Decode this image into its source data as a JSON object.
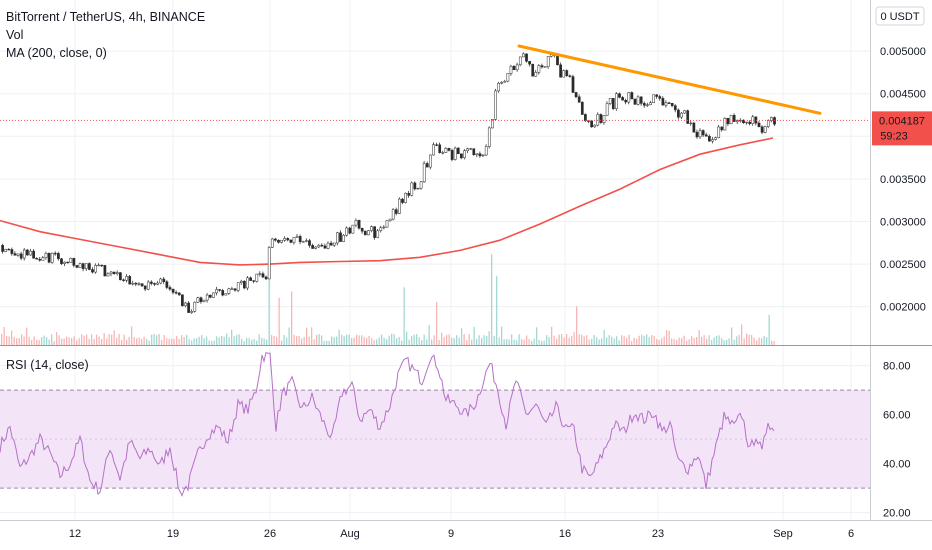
{
  "chart_data": {
    "type": "candlestick",
    "price_pane": {
      "legend": [
        "BitTorrent / TetherUS, 4h, BINANCE",
        "Vol",
        "MA (200, close, 0)"
      ],
      "currency_label": "USDT",
      "y_ticks": [
        "0.005000",
        "0.004500",
        "0.003500",
        "0.003000",
        "0.002500",
        "0.002000"
      ],
      "y_tick_values": [
        0.005,
        0.0045,
        0.0035,
        0.003,
        0.0025,
        0.002
      ],
      "ylim": [
        0.00155,
        0.0056
      ],
      "last_price": "0.004187",
      "last_price_value": 0.004187,
      "countdown": "59:23",
      "close_path": [
        [
          0,
          0.00272
        ],
        [
          10,
          0.00268
        ],
        [
          20,
          0.00262
        ],
        [
          30,
          0.00259
        ],
        [
          40,
          0.00256
        ],
        [
          55,
          0.00258
        ],
        [
          70,
          0.00254
        ],
        [
          85,
          0.00249
        ],
        [
          100,
          0.00243
        ],
        [
          115,
          0.00238
        ],
        [
          130,
          0.00232
        ],
        [
          145,
          0.00226
        ],
        [
          160,
          0.00229
        ],
        [
          172,
          0.00221
        ],
        [
          180,
          0.00209
        ],
        [
          186,
          0.00196
        ],
        [
          195,
          0.00204
        ],
        [
          210,
          0.00213
        ],
        [
          225,
          0.00219
        ],
        [
          240,
          0.00226
        ],
        [
          255,
          0.00232
        ],
        [
          266,
          0.00238
        ],
        [
          270,
          0.00287
        ],
        [
          282,
          0.00275
        ],
        [
          292,
          0.00281
        ],
        [
          305,
          0.00274
        ],
        [
          318,
          0.00271
        ],
        [
          332,
          0.00279
        ],
        [
          345,
          0.00285
        ],
        [
          352,
          0.00298
        ],
        [
          365,
          0.00288
        ],
        [
          378,
          0.00287
        ],
        [
          388,
          0.00301
        ],
        [
          398,
          0.00319
        ],
        [
          408,
          0.00336
        ],
        [
          418,
          0.00346
        ],
        [
          426,
          0.00371
        ],
        [
          434,
          0.00392
        ],
        [
          444,
          0.00382
        ],
        [
          454,
          0.00379
        ],
        [
          464,
          0.00384
        ],
        [
          474,
          0.00382
        ],
        [
          484,
          0.00385
        ],
        [
          490,
          0.00412
        ],
        [
          496,
          0.00458
        ],
        [
          503,
          0.00471
        ],
        [
          512,
          0.00486
        ],
        [
          522,
          0.00489
        ],
        [
          532,
          0.00479
        ],
        [
          542,
          0.00484
        ],
        [
          552,
          0.00488
        ],
        [
          562,
          0.00475
        ],
        [
          572,
          0.00455
        ],
        [
          580,
          0.00432
        ],
        [
          590,
          0.00418
        ],
        [
          600,
          0.00423
        ],
        [
          610,
          0.00438
        ],
        [
          620,
          0.00446
        ],
        [
          630,
          0.00443
        ],
        [
          640,
          0.00436
        ],
        [
          650,
          0.00446
        ],
        [
          660,
          0.00441
        ],
        [
          670,
          0.00435
        ],
        [
          680,
          0.00425
        ],
        [
          690,
          0.00416
        ],
        [
          700,
          0.00401
        ],
        [
          708,
          0.00391
        ],
        [
          718,
          0.00409
        ],
        [
          728,
          0.00418
        ],
        [
          738,
          0.00426
        ],
        [
          748,
          0.00422
        ],
        [
          758,
          0.0041
        ],
        [
          764,
          0.00403
        ],
        [
          770,
          0.00426
        ],
        [
          775,
          0.00419
        ]
      ],
      "ma200_path": [
        [
          0,
          0.00301
        ],
        [
          40,
          0.00288
        ],
        [
          80,
          0.00279
        ],
        [
          120,
          0.0027
        ],
        [
          160,
          0.00261
        ],
        [
          200,
          0.00252
        ],
        [
          240,
          0.00249
        ],
        [
          270,
          0.0025
        ],
        [
          300,
          0.00252
        ],
        [
          340,
          0.00253
        ],
        [
          380,
          0.00254
        ],
        [
          420,
          0.00258
        ],
        [
          460,
          0.00266
        ],
        [
          500,
          0.00278
        ],
        [
          540,
          0.00297
        ],
        [
          580,
          0.00318
        ],
        [
          620,
          0.00338
        ],
        [
          660,
          0.00361
        ],
        [
          700,
          0.00379
        ],
        [
          740,
          0.0039
        ],
        [
          773,
          0.00398
        ]
      ],
      "trendline": [
        [
          519,
          0.00506
        ],
        [
          820,
          0.00427
        ]
      ],
      "volume_spikes": [
        [
          268,
          0.9
        ],
        [
          278,
          0.55
        ],
        [
          490,
          1.0
        ],
        [
          497,
          0.8
        ],
        [
          404,
          0.6
        ],
        [
          768,
          0.35
        ],
        [
          290,
          0.5
        ],
        [
          575,
          0.45
        ],
        [
          437,
          0.5
        ]
      ]
    },
    "rsi_pane": {
      "legend": "RSI (14, close)",
      "y_ticks": [
        "80.00",
        "60.00",
        "40.00",
        "20.00"
      ],
      "y_tick_values": [
        80,
        60,
        40,
        20
      ],
      "ylim": [
        17,
        88
      ],
      "band": [
        30,
        70
      ],
      "mid": 50,
      "path": [
        [
          0,
          47
        ],
        [
          10,
          55
        ],
        [
          20,
          38
        ],
        [
          30,
          43
        ],
        [
          40,
          50
        ],
        [
          50,
          44
        ],
        [
          60,
          35
        ],
        [
          70,
          40
        ],
        [
          80,
          50
        ],
        [
          90,
          33
        ],
        [
          100,
          29
        ],
        [
          110,
          47
        ],
        [
          120,
          34
        ],
        [
          130,
          49
        ],
        [
          140,
          42
        ],
        [
          150,
          46
        ],
        [
          160,
          39
        ],
        [
          170,
          47
        ],
        [
          180,
          28
        ],
        [
          188,
          31
        ],
        [
          198,
          44
        ],
        [
          208,
          52
        ],
        [
          218,
          55
        ],
        [
          228,
          49
        ],
        [
          238,
          64
        ],
        [
          248,
          62
        ],
        [
          256,
          70
        ],
        [
          262,
          84
        ],
        [
          270,
          84
        ],
        [
          276,
          55
        ],
        [
          282,
          68
        ],
        [
          292,
          73
        ],
        [
          302,
          62
        ],
        [
          312,
          67
        ],
        [
          322,
          58
        ],
        [
          332,
          50
        ],
        [
          342,
          69
        ],
        [
          352,
          72
        ],
        [
          360,
          58
        ],
        [
          370,
          62
        ],
        [
          380,
          55
        ],
        [
          390,
          64
        ],
        [
          398,
          76
        ],
        [
          406,
          82
        ],
        [
          414,
          78
        ],
        [
          422,
          74
        ],
        [
          430,
          84
        ],
        [
          438,
          80
        ],
        [
          446,
          66
        ],
        [
          456,
          64
        ],
        [
          466,
          60
        ],
        [
          476,
          65
        ],
        [
          484,
          75
        ],
        [
          490,
          81
        ],
        [
          498,
          70
        ],
        [
          506,
          56
        ],
        [
          516,
          74
        ],
        [
          526,
          60
        ],
        [
          536,
          64
        ],
        [
          546,
          55
        ],
        [
          556,
          63
        ],
        [
          566,
          54
        ],
        [
          574,
          54
        ],
        [
          582,
          38
        ],
        [
          590,
          34
        ],
        [
          598,
          40
        ],
        [
          606,
          47
        ],
        [
          614,
          56
        ],
        [
          624,
          53
        ],
        [
          634,
          61
        ],
        [
          644,
          58
        ],
        [
          654,
          61
        ],
        [
          662,
          53
        ],
        [
          670,
          56
        ],
        [
          678,
          41
        ],
        [
          688,
          38
        ],
        [
          698,
          44
        ],
        [
          706,
          31
        ],
        [
          714,
          44
        ],
        [
          724,
          59
        ],
        [
          734,
          55
        ],
        [
          742,
          60
        ],
        [
          750,
          45
        ],
        [
          756,
          52
        ],
        [
          762,
          44
        ],
        [
          768,
          58
        ],
        [
          774,
          53
        ]
      ]
    },
    "x_ticks": [
      "12",
      "19",
      "26",
      "Aug",
      "9",
      "16",
      "23",
      "Sep",
      "6"
    ],
    "x_tick_pos": [
      75,
      173,
      270,
      350,
      451,
      565,
      658,
      783,
      851
    ],
    "colors": {
      "up": "#26a69a",
      "down": "#ef5350",
      "ma": "#f2504b",
      "trendline": "#ff9800",
      "rsi": "#b470c7",
      "rsi_band": "#f3e5f7",
      "price_label": "#f2504b"
    }
  }
}
